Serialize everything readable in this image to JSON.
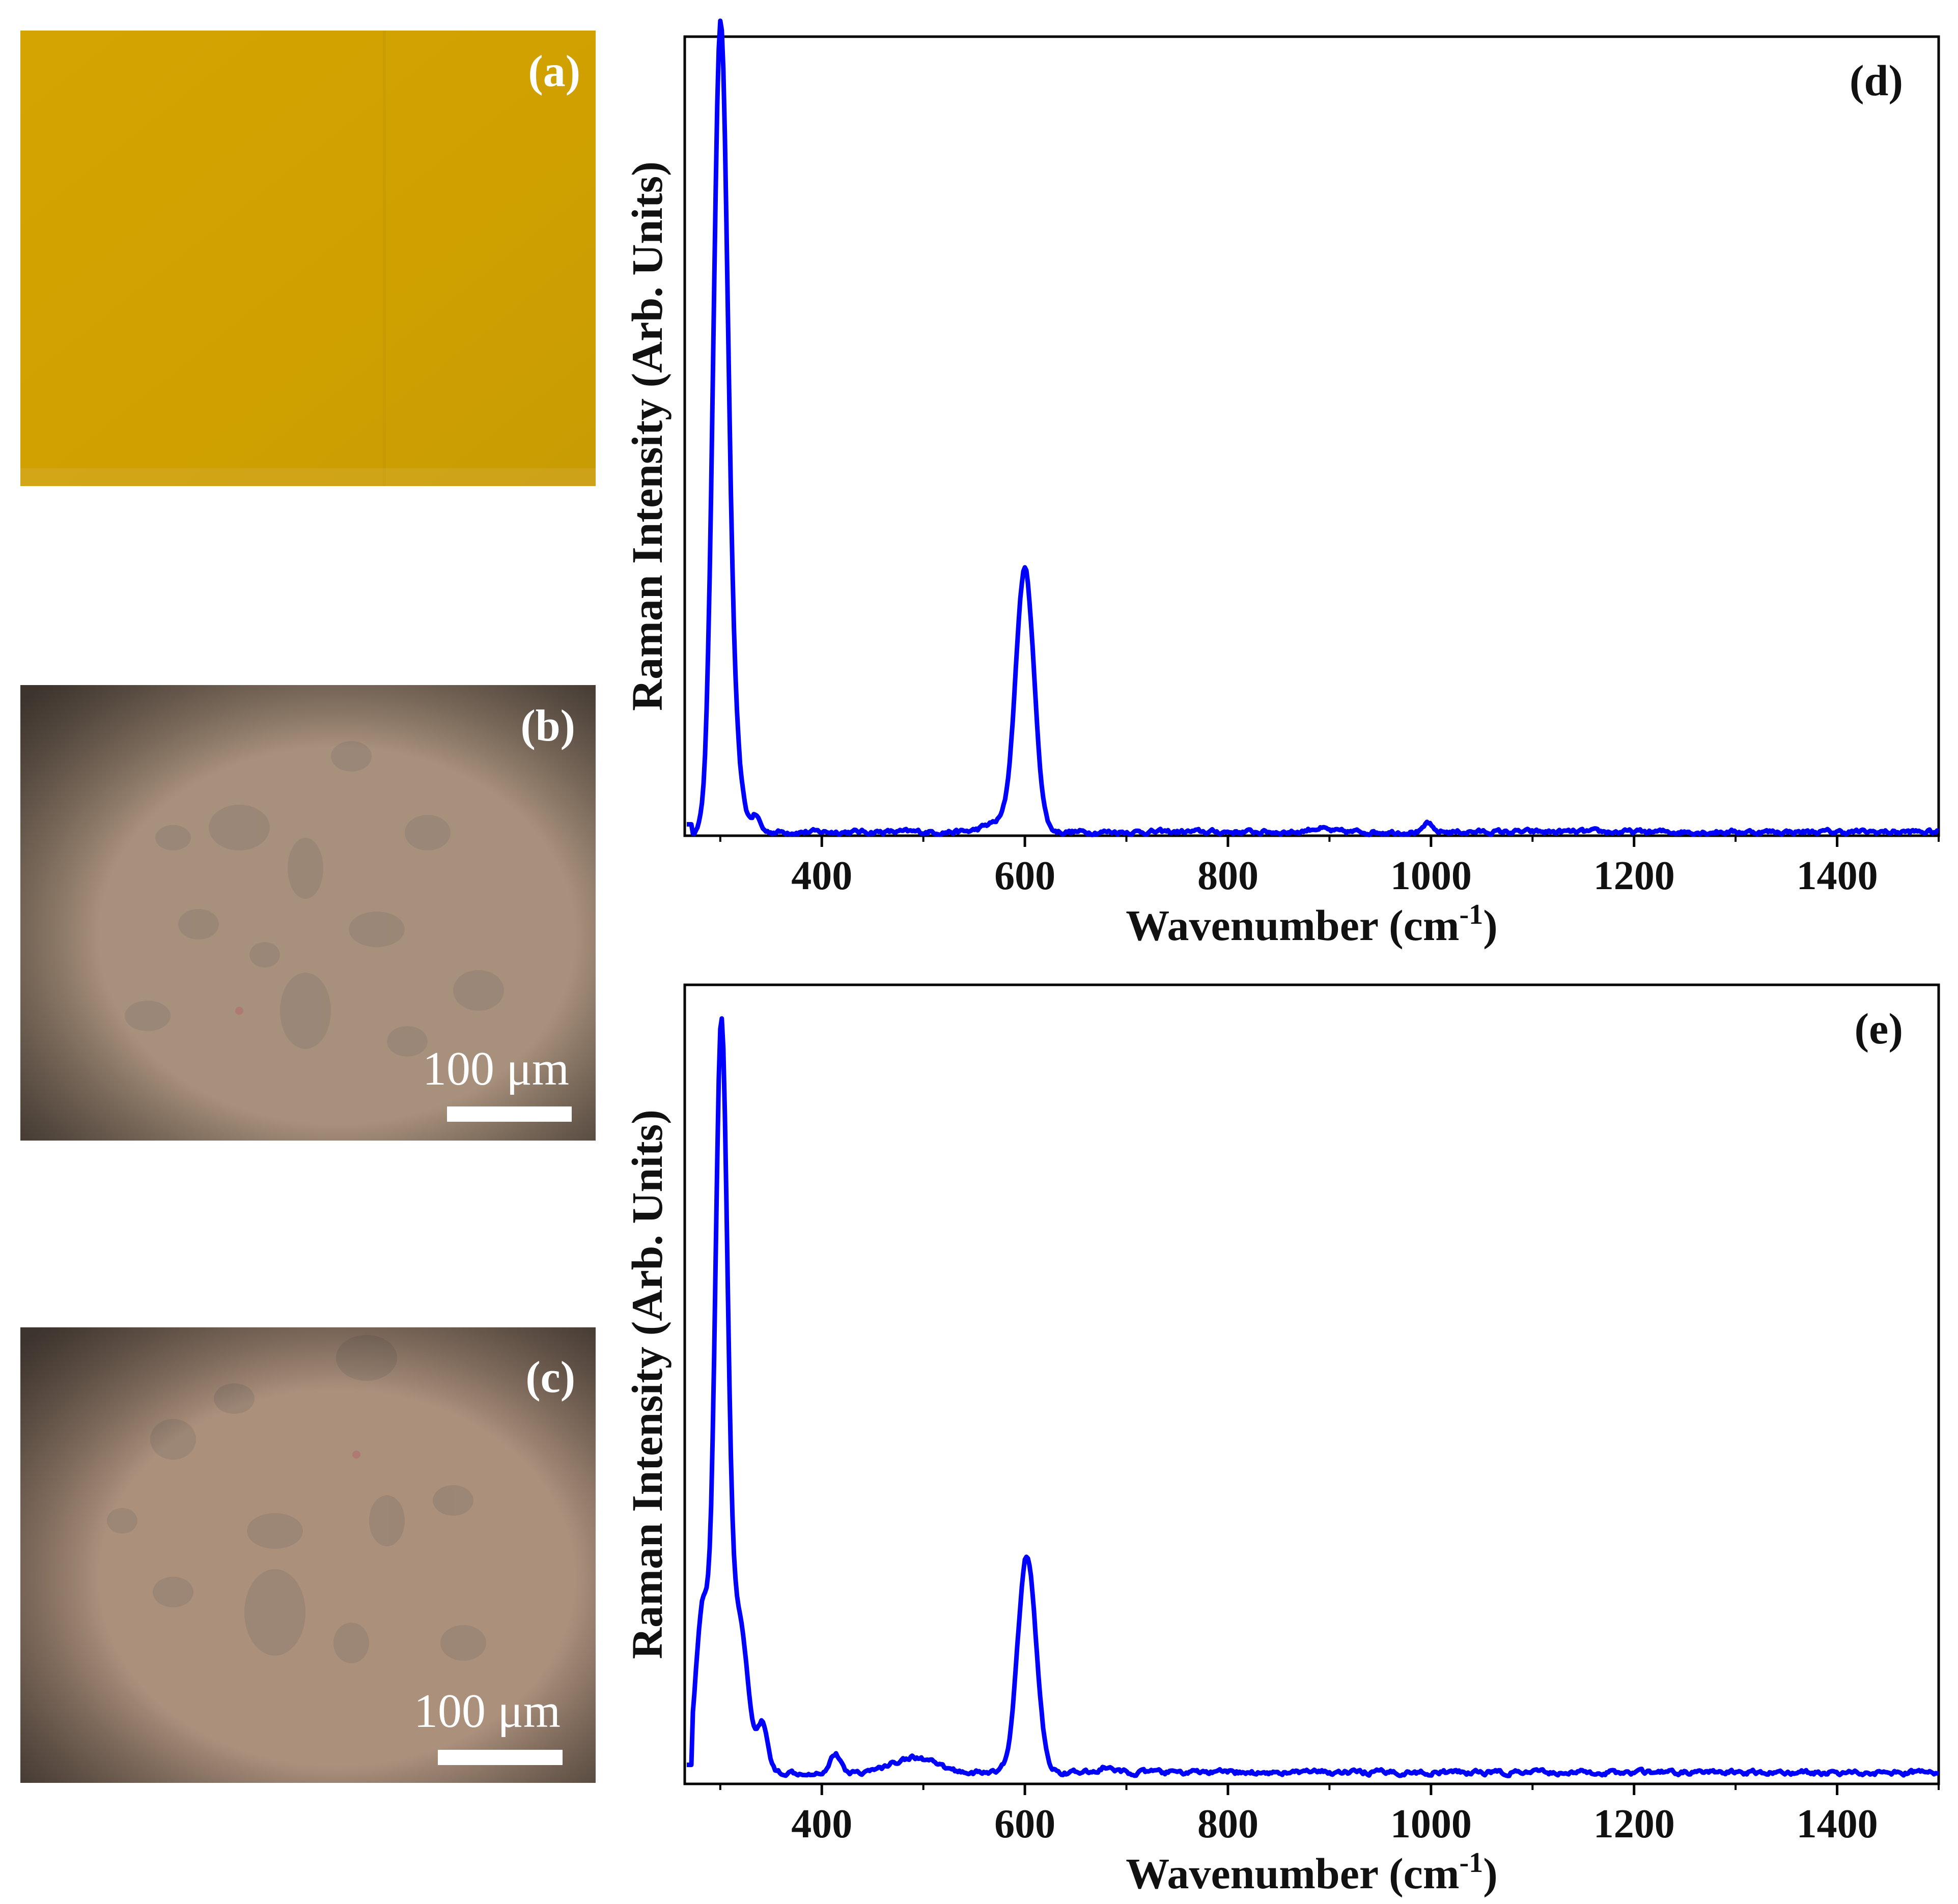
{
  "panels": {
    "a": {
      "label": "(a)"
    },
    "b": {
      "label": "(b)",
      "scale_text": "100 μm"
    },
    "c": {
      "label": "(c)",
      "scale_text": "100 μm"
    }
  },
  "colors": {
    "line": "#0000ff",
    "sample_a": "#d2a000",
    "micro": "#a8907a"
  },
  "chart_data": [
    {
      "type": "line",
      "panel": "(d)",
      "xlabel": "Wavenumber (cm",
      "xlabel_sup": "-1",
      "xlabel_end": ")",
      "ylabel": "Raman Intensity (Arb. Units)",
      "xlim": [
        265,
        1500
      ],
      "ylim": [
        0,
        1.05
      ],
      "xticks": [
        400,
        600,
        800,
        1000,
        1200,
        1400
      ],
      "yticks": [],
      "series": [
        {
          "name": "(d)",
          "peaks": [
            {
              "center": 300,
              "height": 1.0,
              "width": 7
            },
            {
              "center": 310,
              "height": 0.12,
              "width": 9
            },
            {
              "center": 335,
              "height": 0.02,
              "width": 4
            },
            {
              "center": 572,
              "height": 0.012,
              "width": 12
            },
            {
              "center": 600,
              "height": 0.345,
              "width": 9
            },
            {
              "center": 997,
              "height": 0.012,
              "width": 3
            },
            {
              "center": 888,
              "height": 0.005,
              "width": 8
            }
          ],
          "baseline": 0.005
        }
      ]
    },
    {
      "type": "line",
      "panel": "(e)",
      "xlabel": "Wavenumber (cm",
      "xlabel_sup": "-1",
      "xlabel_end": ")",
      "ylabel": "Raman Intensity (Arb. Units)",
      "xlim": [
        265,
        1500
      ],
      "ylim": [
        0,
        1.05
      ],
      "xticks": [
        400,
        600,
        800,
        1000,
        1200,
        1400
      ],
      "yticks": [],
      "series": [
        {
          "name": "(e)",
          "peaks": [
            {
              "center": 301,
              "height": 0.95,
              "width": 6
            },
            {
              "center": 283,
              "height": 0.22,
              "width": 7
            },
            {
              "center": 318,
              "height": 0.2,
              "width": 9
            },
            {
              "center": 342,
              "height": 0.06,
              "width": 5
            },
            {
              "center": 413,
              "height": 0.025,
              "width": 5
            },
            {
              "center": 490,
              "height": 0.02,
              "width": 20
            },
            {
              "center": 602,
              "height": 0.285,
              "width": 9
            },
            {
              "center": 680,
              "height": 0.007,
              "width": 6
            }
          ],
          "baseline": 0.015
        }
      ]
    }
  ]
}
